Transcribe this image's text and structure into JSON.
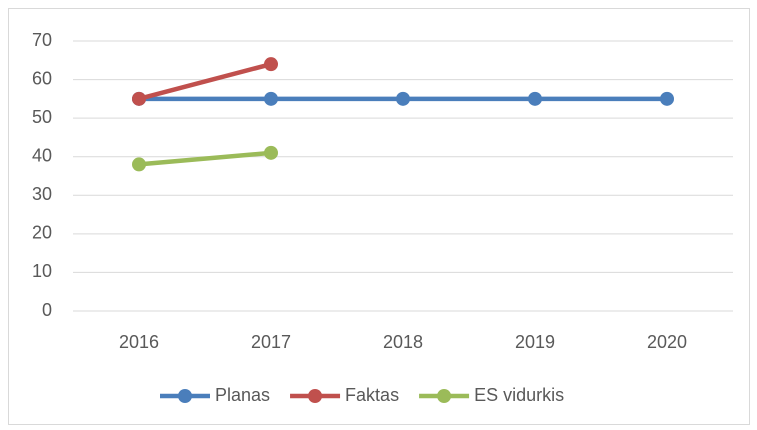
{
  "chart_data": {
    "type": "line",
    "categories": [
      "2016",
      "2017",
      "2018",
      "2019",
      "2020"
    ],
    "series": [
      {
        "name": "Planas",
        "color": "#4a7ebb",
        "values": [
          55,
          55,
          55,
          55,
          55
        ]
      },
      {
        "name": "Faktas",
        "color": "#c0504d",
        "values": [
          55,
          64,
          null,
          null,
          null
        ]
      },
      {
        "name": "ES vidurkis",
        "color": "#9bbb59",
        "values": [
          38,
          41,
          null,
          null,
          null
        ]
      }
    ],
    "ylim": [
      0,
      70
    ],
    "yticks": [
      0,
      10,
      20,
      30,
      40,
      50,
      60,
      70
    ],
    "grid": true,
    "legend": "bottom"
  }
}
